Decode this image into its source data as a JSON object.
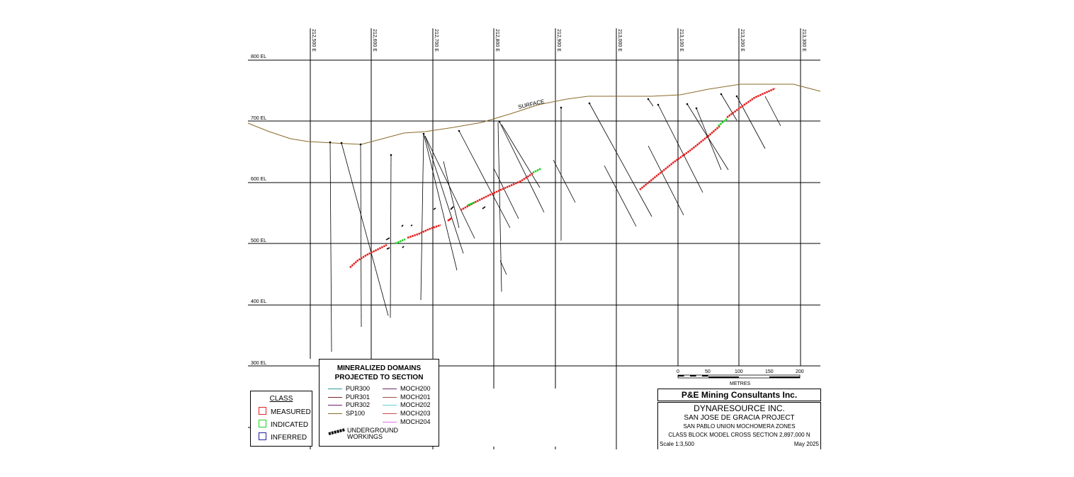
{
  "section": {
    "eastings": [
      "212,500 E",
      "212,600 E",
      "212,700 E",
      "212,800 E",
      "212,900 E",
      "213,000 E",
      "213,100 E",
      "213,200 E",
      "213,300 E"
    ],
    "elevations": [
      "800 EL",
      "700 EL",
      "600 EL",
      "500 EL",
      "400 EL",
      "300 EL"
    ],
    "surface_label": "SURFACE"
  },
  "scale_bar": {
    "ticks": [
      "0",
      "50",
      "100",
      "150",
      "200"
    ],
    "unit": "METRES"
  },
  "domains_legend": {
    "title_line1": "MINERALIZED DOMAINS",
    "title_line2": "PROJECTED TO SECTION",
    "items": [
      {
        "label": "PUR300",
        "color": "#2a9d9d"
      },
      {
        "label": "PUR301",
        "color": "#7a1f1f"
      },
      {
        "label": "PUR302",
        "color": "#6a1f6a"
      },
      {
        "label": "SP100",
        "color": "#8a6a2a"
      },
      {
        "label": "MOCH200",
        "color": "#6a2a5a"
      },
      {
        "label": "MOCH201",
        "color": "#a04a4a"
      },
      {
        "label": "MOCH202",
        "color": "#6ad0d0"
      },
      {
        "label": "MOCH203",
        "color": "#d04a4a"
      },
      {
        "label": "MOCH204",
        "color": "#e070e0"
      }
    ],
    "underground_label_line1": "UNDERGROUND",
    "underground_label_line2": "WORKINGS"
  },
  "class_legend": {
    "title": "CLASS",
    "items": [
      {
        "label": "MEASURED",
        "color": "#e02020"
      },
      {
        "label": "INDICATED",
        "color": "#20d020"
      },
      {
        "label": "INFERRED",
        "color": "#2020a0"
      }
    ]
  },
  "title_block": {
    "firm": "P&E Mining Consultants Inc.",
    "client": "DYNARESOURCE INC.",
    "project": "SAN JOSE DE GRACIA PROJECT",
    "zones": "SAN PABLO UNION MOCHOMERA ZONES",
    "section": "CLASS BLOCK MODEL CROSS SECTION 2,897,000 N",
    "scale": "Scale 1:3,500",
    "date": "May 2025"
  },
  "colors": {
    "measured": "#e02020",
    "indicated": "#20d020",
    "surface": "#8a6a2a",
    "grid": "#000000"
  }
}
